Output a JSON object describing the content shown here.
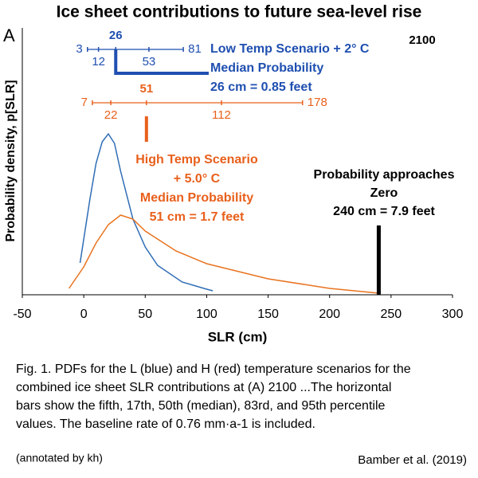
{
  "chart_data": {
    "type": "line",
    "title": "Ice sheet contributions to future sea-level rise",
    "panel_label": "A",
    "year_label": "2100",
    "xlabel": "SLR (cm)",
    "ylabel": "Probability density, p[SLR]",
    "xlim": [
      -50,
      300
    ],
    "xticks": [
      -50,
      0,
      50,
      100,
      150,
      200,
      250,
      300
    ],
    "ylim": [
      0,
      1.675
    ],
    "series": [
      {
        "color": "#2f6db5",
        "x": [
          -3,
          5,
          10,
          15,
          20,
          25,
          30,
          40,
          50,
          60,
          80,
          100,
          105
        ],
        "values": [
          0.2,
          0.6,
          0.825,
          0.96,
          1.01,
          0.95,
          0.775,
          0.475,
          0.3,
          0.185,
          0.08,
          0.035,
          0.025
        ]
      },
      {
        "color": "#e8731f",
        "x": [
          -12,
          0,
          10,
          20,
          30,
          40,
          50,
          75,
          100,
          150,
          200,
          240
        ],
        "values": [
          0.04,
          0.175,
          0.325,
          0.44,
          0.5,
          0.475,
          0.4,
          0.275,
          0.195,
          0.1,
          0.04,
          0.01
        ]
      }
    ],
    "percentile_bars": [
      {
        "color": "#1f4fb0",
        "values": [
          3,
          12,
          26,
          53,
          81
        ]
      },
      {
        "color": "#e8601c",
        "values": [
          7,
          22,
          51,
          112,
          178
        ]
      }
    ],
    "annotations": [
      {
        "color": "#1f4fb0",
        "lines": [
          "Low Temp Scenario + 2° C",
          "Median Probability",
          "26 cm =  0.85 feet"
        ]
      },
      {
        "color": "#e8601c",
        "lines": [
          "High Temp Scenario",
          "+ 5.0°  C",
          "Median Probability",
          "51 cm = 1.7 feet"
        ]
      },
      {
        "color": "#000000",
        "lines": [
          "Probability approaches",
          "Zero",
          "240 cm = 7.9 feet"
        ],
        "marker_x": 240
      }
    ],
    "caption": [
      "Fig. 1. PDFs for the L (blue) and H (red) temperature scenarios for the",
      "combined ice sheet SLR contributions at (A) 2100 ...The horizontal",
      "bars show the fifth, 17th, 50th (median), 83rd, and 95th percentile",
      "values. The baseline rate of 0.76 mm·a-1 is included."
    ],
    "note": "(annotated by kh)",
    "source": "Bamber et al. (2019)"
  }
}
